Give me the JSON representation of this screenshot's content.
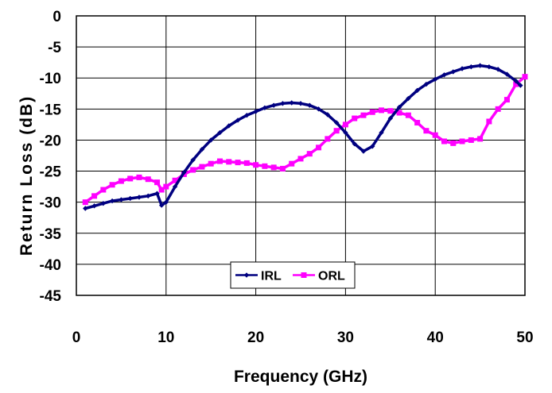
{
  "chart_data": {
    "type": "line",
    "title": "",
    "xlabel": "Frequency (GHz)",
    "ylabel": "Return Loss (dB)",
    "xlim": [
      0,
      50
    ],
    "ylim": [
      -45,
      0
    ],
    "x_ticks": [
      0,
      10,
      20,
      30,
      40,
      50
    ],
    "y_ticks": [
      0,
      -5,
      -10,
      -15,
      -20,
      -25,
      -30,
      -35,
      -40,
      -45
    ],
    "grid": true,
    "legend_position": "bottom-center",
    "series": [
      {
        "name": "IRL",
        "color": "#000080",
        "marker": "diamond",
        "points": [
          [
            1,
            -31
          ],
          [
            2,
            -30.6
          ],
          [
            3,
            -30.2
          ],
          [
            4,
            -29.8
          ],
          [
            5,
            -29.6
          ],
          [
            6,
            -29.4
          ],
          [
            7,
            -29.2
          ],
          [
            8,
            -29
          ],
          [
            9,
            -28.6
          ],
          [
            9.5,
            -30.5
          ],
          [
            10,
            -30
          ],
          [
            11,
            -27.5
          ],
          [
            12,
            -25.2
          ],
          [
            13,
            -23.2
          ],
          [
            14,
            -21.5
          ],
          [
            15,
            -20
          ],
          [
            16,
            -18.8
          ],
          [
            17,
            -17.7
          ],
          [
            18,
            -16.8
          ],
          [
            19,
            -16
          ],
          [
            20,
            -15.4
          ],
          [
            21,
            -14.8
          ],
          [
            22,
            -14.4
          ],
          [
            23,
            -14.1
          ],
          [
            24,
            -14
          ],
          [
            25,
            -14.1
          ],
          [
            26,
            -14.4
          ],
          [
            27,
            -15
          ],
          [
            28,
            -15.9
          ],
          [
            29,
            -17.2
          ],
          [
            30,
            -18.8
          ],
          [
            31,
            -20.6
          ],
          [
            32,
            -21.8
          ],
          [
            33,
            -21
          ],
          [
            34,
            -18.8
          ],
          [
            35,
            -16.5
          ],
          [
            36,
            -14.7
          ],
          [
            37,
            -13.3
          ],
          [
            38,
            -12
          ],
          [
            39,
            -11
          ],
          [
            40,
            -10.2
          ],
          [
            41,
            -9.5
          ],
          [
            42,
            -9
          ],
          [
            43,
            -8.5
          ],
          [
            44,
            -8.2
          ],
          [
            45,
            -8
          ],
          [
            46,
            -8.2
          ],
          [
            47,
            -8.6
          ],
          [
            48,
            -9.4
          ],
          [
            49,
            -10.5
          ],
          [
            49.5,
            -11.2
          ]
        ]
      },
      {
        "name": "ORL",
        "color": "#ff00ff",
        "marker": "square",
        "points": [
          [
            1,
            -30
          ],
          [
            2,
            -29
          ],
          [
            3,
            -28
          ],
          [
            4,
            -27.2
          ],
          [
            5,
            -26.6
          ],
          [
            6,
            -26.2
          ],
          [
            7,
            -26
          ],
          [
            8,
            -26.3
          ],
          [
            9,
            -26.8
          ],
          [
            9.5,
            -28
          ],
          [
            10,
            -27.5
          ],
          [
            11,
            -26.5
          ],
          [
            12,
            -25.5
          ],
          [
            13,
            -24.8
          ],
          [
            14,
            -24.3
          ],
          [
            15,
            -23.8
          ],
          [
            16,
            -23.4
          ],
          [
            17,
            -23.5
          ],
          [
            18,
            -23.6
          ],
          [
            19,
            -23.7
          ],
          [
            20,
            -24
          ],
          [
            21,
            -24.2
          ],
          [
            22,
            -24.4
          ],
          [
            23,
            -24.6
          ],
          [
            24,
            -23.8
          ],
          [
            25,
            -23
          ],
          [
            26,
            -22.2
          ],
          [
            27,
            -21.2
          ],
          [
            28,
            -19.8
          ],
          [
            29,
            -18.5
          ],
          [
            30,
            -17.5
          ],
          [
            31,
            -16.5
          ],
          [
            32,
            -16
          ],
          [
            33,
            -15.5
          ],
          [
            34,
            -15.2
          ],
          [
            35,
            -15.3
          ],
          [
            36,
            -15.6
          ],
          [
            37,
            -16
          ],
          [
            38,
            -17.2
          ],
          [
            39,
            -18.5
          ],
          [
            40,
            -19.2
          ],
          [
            41,
            -20.2
          ],
          [
            42,
            -20.5
          ],
          [
            43,
            -20.2
          ],
          [
            44,
            -20
          ],
          [
            45,
            -19.8
          ],
          [
            46,
            -17
          ],
          [
            47,
            -15
          ],
          [
            48,
            -13.5
          ],
          [
            49,
            -11
          ],
          [
            50,
            -9.8
          ]
        ]
      }
    ]
  }
}
